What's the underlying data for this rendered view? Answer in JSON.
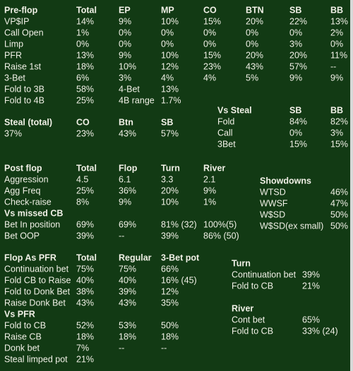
{
  "sections": [
    {
      "rows": [
        [
          "Pre-flop",
          "Total",
          "EP",
          "MP",
          "CO",
          "BTN",
          "SB",
          "BB"
        ],
        [
          "VP$IP",
          "14%",
          "9%",
          "10%",
          "15%",
          "20%",
          "22%",
          "13%"
        ],
        [
          "Call Open",
          "1%",
          "0%",
          "0%",
          "0%",
          "0%",
          "0%",
          "2%"
        ],
        [
          "Limp",
          "0%",
          "0%",
          "0%",
          "0%",
          "0%",
          "3%",
          "0%"
        ],
        [
          "PFR",
          "13%",
          "9%",
          "10%",
          "15%",
          "20%",
          "20%",
          "11%"
        ],
        [
          "Raise 1st",
          "18%",
          "10%",
          "12%",
          "23%",
          "43%",
          "57%",
          "--"
        ],
        [
          "3-Bet",
          "6%",
          "3%",
          "4%",
          "4%",
          "5%",
          "9%",
          "9%"
        ],
        [
          "Fold to 3B",
          "58%",
          "4-Bet",
          "13%"
        ],
        [
          "Fold to 4B",
          "25%",
          "4B range",
          "1.7%"
        ]
      ]
    },
    {
      "rows": [
        [
          "Steal (total)",
          "CO",
          "Btn",
          "SB"
        ],
        [
          "37%",
          "23%",
          "43%",
          "57%"
        ]
      ]
    },
    {
      "rows": [
        [
          "Vs Steal",
          "SB",
          "BB"
        ],
        [
          "Fold",
          "84%",
          "82%"
        ],
        [
          "Call",
          "0%",
          "3%"
        ],
        [
          "3Bet",
          "15%",
          "15%"
        ]
      ]
    },
    {
      "rows": [
        [
          "Post flop",
          "Total",
          "Flop",
          "Turn",
          "River"
        ],
        [
          "Aggression",
          "4.5",
          "6.1",
          "3.3",
          "2.1"
        ],
        [
          "Agg Freq",
          "25%",
          "36%",
          "20%",
          "9%"
        ],
        [
          "Check-raise",
          "8%",
          "9%",
          "10%",
          "1%"
        ],
        [
          "Vs missed CB"
        ],
        [
          "Bet In position",
          "69%",
          "69%",
          "81% (32)",
          "100%(5)"
        ],
        [
          "Bet OOP",
          "39%",
          "--",
          "39%",
          "86% (50)"
        ]
      ]
    },
    {
      "rows": [
        [
          "Showdowns"
        ],
        [
          "WTSD",
          "46%"
        ],
        [
          "WWSF",
          "47%"
        ],
        [
          "W$SD",
          "50%"
        ],
        [
          "W$SD(ex small)",
          "50%"
        ]
      ]
    },
    {
      "rows": [
        [
          "Flop As PFR",
          "Total",
          "Regular",
          "3-Bet pot"
        ],
        [
          "Continuation bet",
          "75%",
          "75%",
          "66%"
        ],
        [
          "Fold CB to Raise",
          "40%",
          "40%",
          "16% (45)"
        ],
        [
          "Fold to Donk Bet",
          "38%",
          "39%",
          "12%"
        ],
        [
          "Raise Donk Bet",
          "43%",
          "43%",
          "35%"
        ],
        [
          "Vs PFR"
        ],
        [
          "Fold to CB",
          "52%",
          "53%",
          "50%"
        ],
        [
          "Raise CB",
          "18%",
          "18%",
          "18%"
        ],
        [
          "Donk bet",
          "7%",
          "--",
          "--"
        ],
        [
          "Steal limped pot",
          "21%"
        ]
      ]
    },
    {
      "rows": [
        [
          "Turn"
        ],
        [
          "Continuation bet",
          "39%"
        ],
        [
          "Fold to CB",
          "21%"
        ]
      ]
    },
    {
      "rows": [
        [
          "River"
        ],
        [
          "Cont bet",
          "65%"
        ],
        [
          "Fold to CB",
          "33% (24)"
        ]
      ]
    }
  ]
}
